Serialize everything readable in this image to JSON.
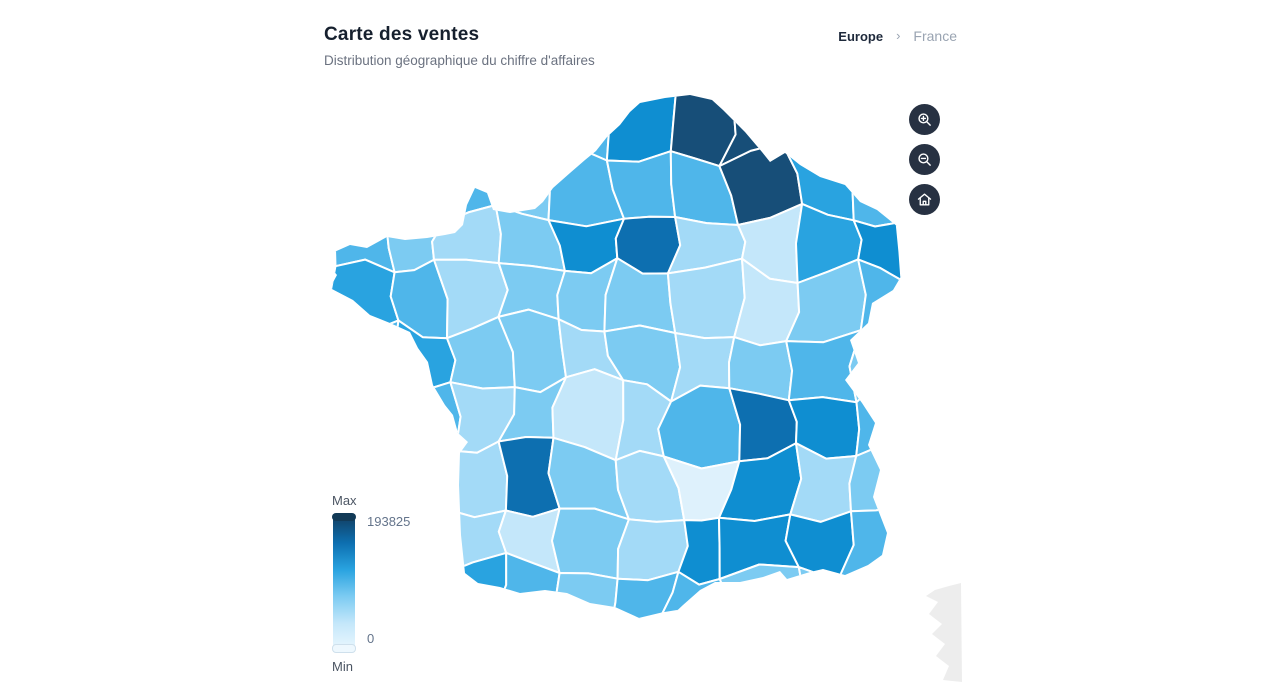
{
  "header": {
    "title": "Carte des ventes",
    "subtitle": "Distribution géographique du chiffre d'affaires"
  },
  "breadcrumb": {
    "parent": "Europe",
    "separator": "›",
    "current": "France"
  },
  "controls": {
    "zoom_in_icon": "magnifier-plus",
    "zoom_out_icon": "magnifier-minus",
    "reset_icon": "home",
    "button_bg": "#273142",
    "icon_color": "#ffffff"
  },
  "legend": {
    "max_label": "Max",
    "min_label": "Min",
    "max_value": "193825",
    "min_value": "0",
    "max_handle_color": "#123a57",
    "min_handle_color": "#eef8fe"
  },
  "chart_data": {
    "type": "choropleth",
    "title": "Carte des ventes",
    "subtitle": "Distribution géographique du chiffre d'affaires",
    "map_of": "France (départements)",
    "metric": "chiffre d'affaires",
    "value_range": [
      0,
      193825
    ],
    "border_color": "#ffffff",
    "no_data_color": "#ededed",
    "palette": [
      "#def1fc",
      "#c4e7fa",
      "#a3daf7",
      "#7ccbf2",
      "#4fb6ea",
      "#29a3e0",
      "#0f8ed1",
      "#0d6fb0",
      "#174e78"
    ],
    "legend_gradient": [
      "#eaf7fe",
      "#c4e7fa",
      "#7ccbf2",
      "#29a3e0",
      "#0d6fb0",
      "#123f63"
    ],
    "map_grid": [
      "3333468833",
      "3343444854",
      "4323672156",
      "5423332134",
      "4533232343",
      "3423124764",
      "3327320623",
      "2421326664",
      "3354344333"
    ],
    "map_grid_note": "shading levels 0-8 indexing palette; 10 columns west→east, 9 rows north→south; darkest = Nord (max 193825), other dark cells: Île-de-France, Gironde, Rhône/Isère, Hérault, Bouches-du-Rhône, Var"
  }
}
